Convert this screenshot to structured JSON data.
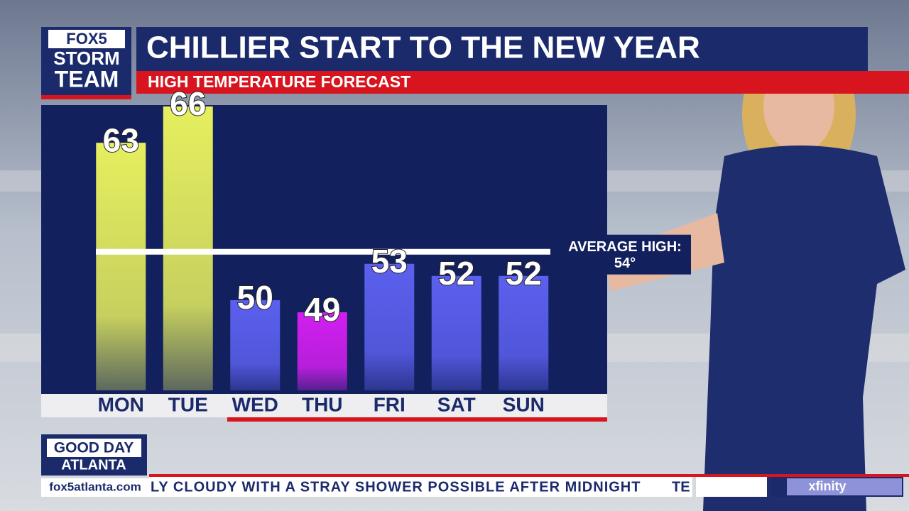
{
  "branding": {
    "logo": [
      "FOX5",
      "STORM",
      "TEAM"
    ],
    "show": [
      "GOOD DAY",
      "ATLANTA"
    ],
    "website": "fox5atlanta.com",
    "sponsor": "xfinity"
  },
  "ticker": {
    "text": "LY CLOUDY WITH A STRAY SHOWER POSSIBLE AFTER MIDNIGHT",
    "next": "TE"
  },
  "chart_data": {
    "type": "bar",
    "title": "CHILLIER START TO THE NEW YEAR",
    "subtitle": "HIGH TEMPERATURE FORECAST",
    "categories": [
      "MON",
      "TUE",
      "WED",
      "THU",
      "FRI",
      "SAT",
      "SUN"
    ],
    "values": [
      63,
      66,
      50,
      49,
      53,
      52,
      52
    ],
    "colors": [
      "#e6ef5e",
      "#e6ef5e",
      "#5b60ee",
      "#d21ff0",
      "#5b60ee",
      "#5b60ee",
      "#5b60ee"
    ],
    "reference_line": {
      "label": "AVERAGE HIGH:",
      "value": 54,
      "value_label": "54°"
    }
  }
}
